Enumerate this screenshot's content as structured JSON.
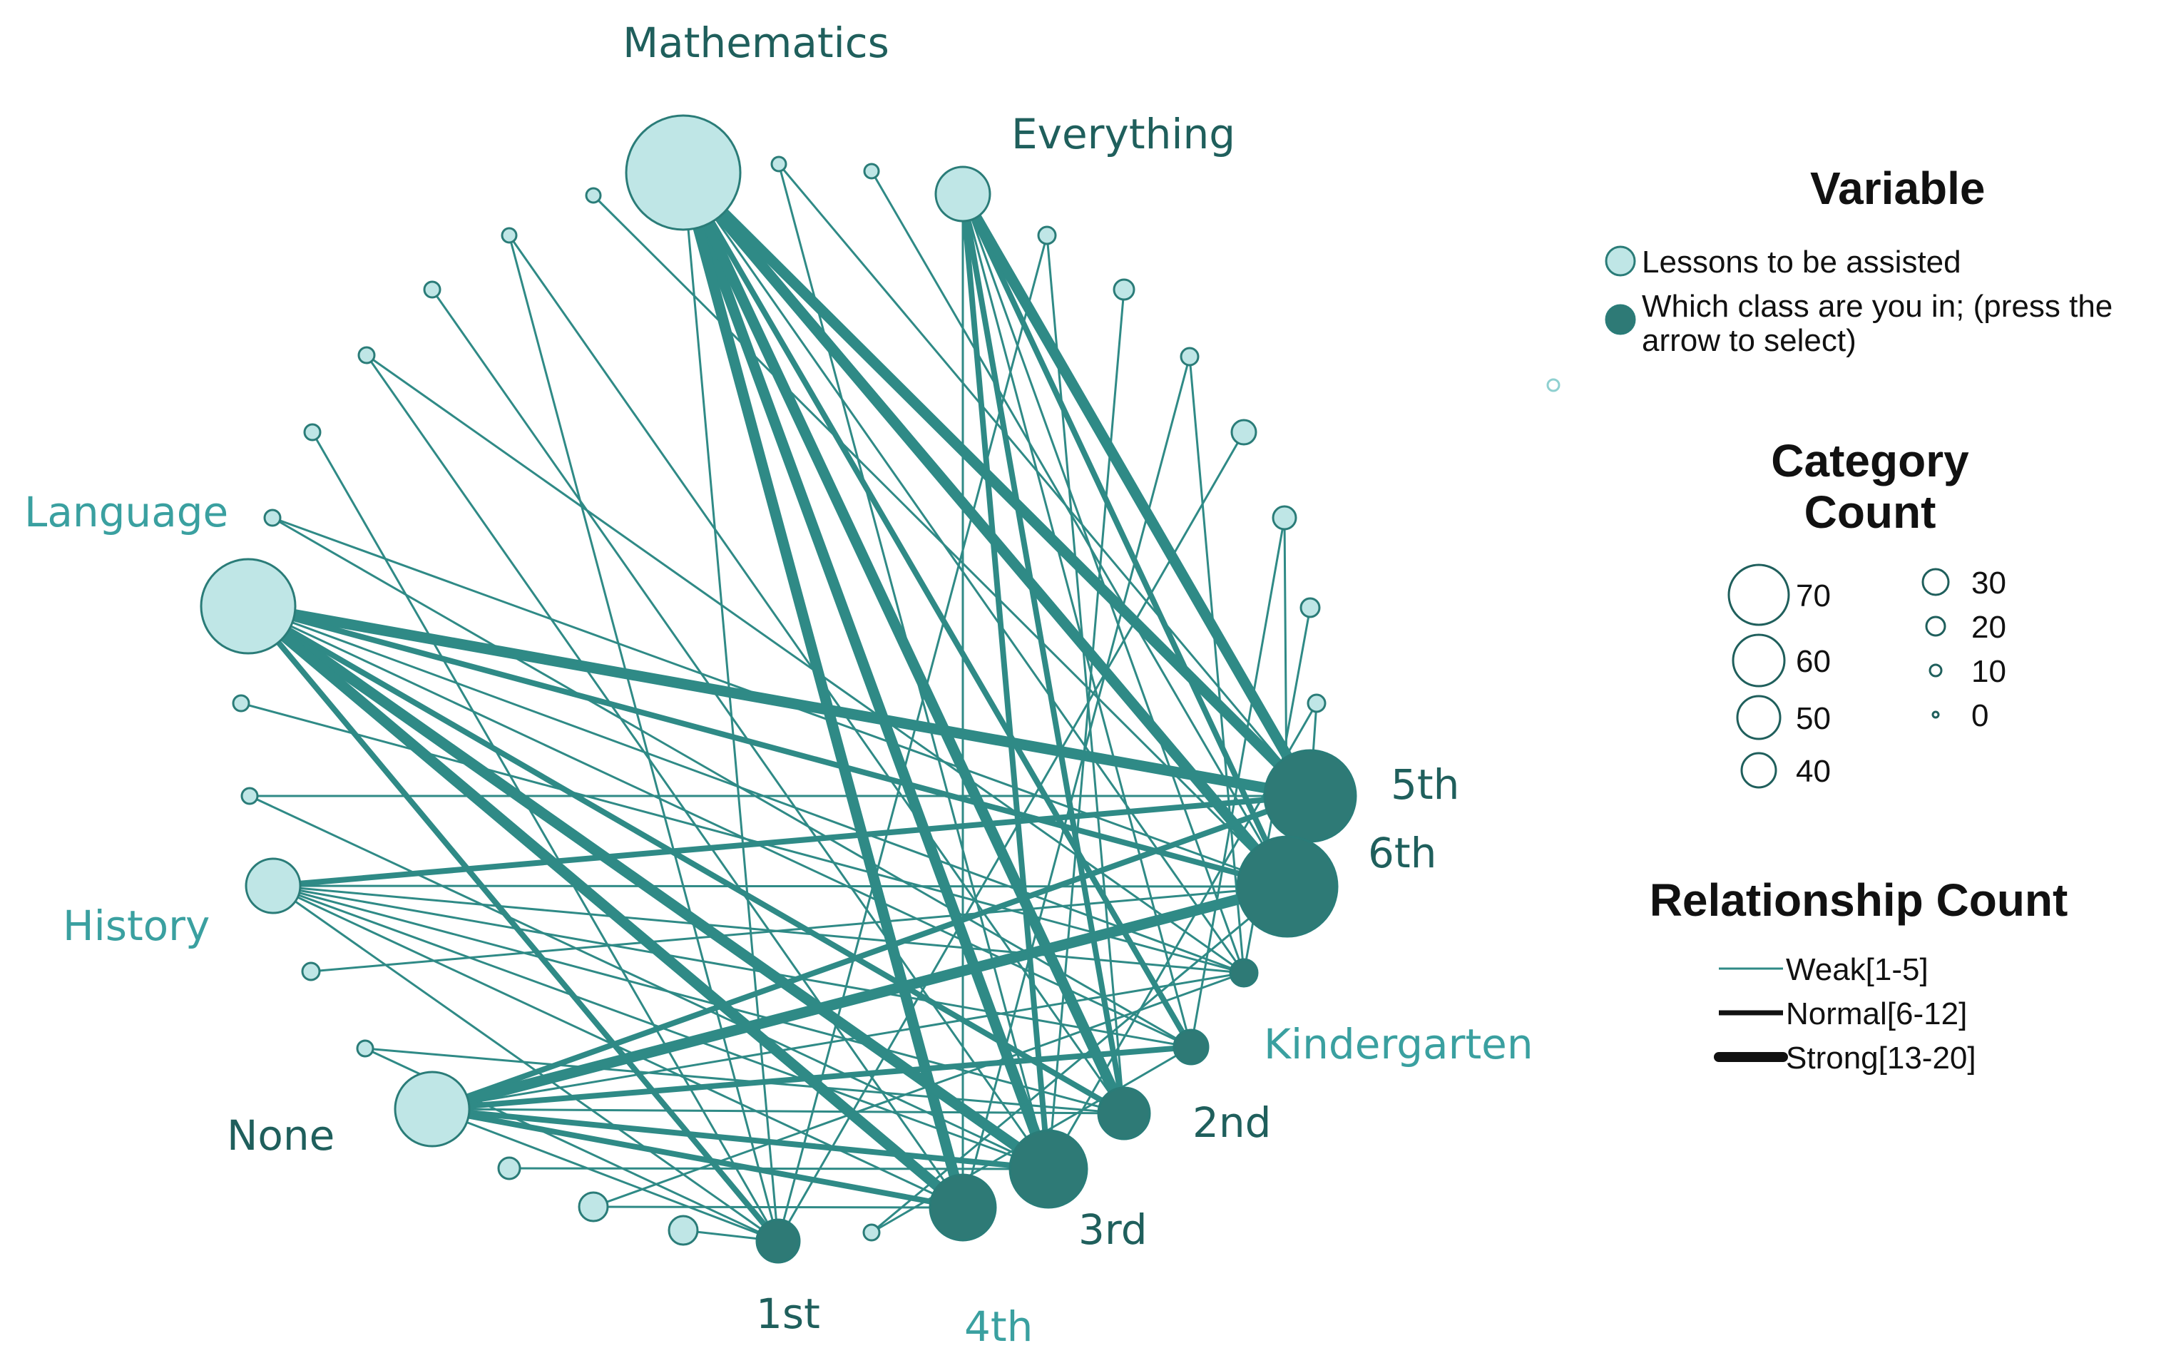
{
  "colors": {
    "lessons": "#bfe6e6",
    "class": "#2e7a76",
    "edge": "#2f8a86",
    "outline": "#2a7c78"
  },
  "nodes": {
    "mathematics": {
      "label": "Mathematics",
      "variable": "lessons"
    },
    "everything": {
      "label": "Everything",
      "variable": "lessons"
    },
    "language": {
      "label": "Language",
      "variable": "lessons"
    },
    "history": {
      "label": "History",
      "variable": "lessons"
    },
    "none": {
      "label": "None",
      "variable": "lessons"
    },
    "fifth": {
      "label": "5th",
      "variable": "class"
    },
    "sixth": {
      "label": "6th",
      "variable": "class"
    },
    "kindergarten": {
      "label": "Kindergarten",
      "variable": "class"
    },
    "second": {
      "label": "2nd",
      "variable": "class"
    },
    "third": {
      "label": "3rd",
      "variable": "class"
    },
    "fourth": {
      "label": "4th",
      "variable": "class"
    },
    "first": {
      "label": "1st",
      "variable": "class"
    }
  },
  "legend": {
    "variable": {
      "title": "Variable",
      "items": [
        {
          "key": "lessons",
          "label": "Lessons to be assisted"
        },
        {
          "key": "class",
          "label_line1": "Which class are you in; (press the",
          "label_line2": "arrow to select)"
        }
      ]
    },
    "category_count": {
      "title_line1": "Category",
      "title_line2": "Count",
      "items": [
        {
          "value": "70"
        },
        {
          "value": "60"
        },
        {
          "value": "50"
        },
        {
          "value": "40"
        },
        {
          "value": "30"
        },
        {
          "value": "20"
        },
        {
          "value": "10"
        },
        {
          "value": "0"
        }
      ]
    },
    "relationship_count": {
      "title": "Relationship Count",
      "items": [
        {
          "label": "Weak[1-5]",
          "strength": "weak"
        },
        {
          "label": "Normal[6-12]",
          "strength": "normal"
        },
        {
          "label": "Strong[13-20]",
          "strength": "strong"
        }
      ]
    }
  }
}
